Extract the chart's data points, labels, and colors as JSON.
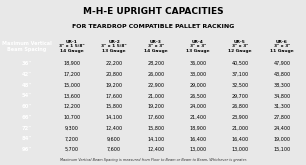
{
  "title": "M-H-E UPRIGHT CAPACITIES",
  "subtitle": "FOR TEARDROP COMPATIBLE PALLET RACKING",
  "footnote": "Maximum Vertical Beam Spacing is measured from Floor to Beam or Beam to Beam, Whichever is greater.",
  "columns": [
    "UR-1",
    "UR-2",
    "UR-3",
    "UR-4",
    "UR-5",
    "UR-6"
  ],
  "col_sub1": [
    "3\" x 1 5/8\"",
    "3\" x 1 5/8\"",
    "3\" x 3\"",
    "3\" x 3\"",
    "3\" x 3\"",
    "3\" x 3\""
  ],
  "col_sub2": [
    "14 Gauge",
    "13 Gauge",
    "14 Gauge",
    "13 Gauge",
    "12 Gauge",
    "11 Gauge"
  ],
  "row_header": "Maximum Vertical\nBeam Spacing",
  "rows": [
    "36\"",
    "42\"",
    "48\"",
    "54\"",
    "60\"",
    "66\"",
    "72\"",
    "84\"",
    "96\""
  ],
  "data": [
    [
      18900,
      22200,
      28200,
      36000,
      40500,
      47900
    ],
    [
      17200,
      20800,
      26000,
      33000,
      37100,
      43800
    ],
    [
      15000,
      19200,
      22900,
      29000,
      32500,
      38300
    ],
    [
      13600,
      17600,
      21000,
      26500,
      29700,
      34800
    ],
    [
      12200,
      15800,
      19200,
      24000,
      26800,
      31300
    ],
    [
      10700,
      14100,
      17600,
      21400,
      23900,
      27800
    ],
    [
      9300,
      12400,
      15800,
      18900,
      21000,
      24400
    ],
    [
      7200,
      9600,
      14100,
      16400,
      16400,
      19000
    ],
    [
      5700,
      7600,
      12400,
      13000,
      13000,
      15100
    ]
  ],
  "color_bg": "#E8E8E8",
  "color_header_bg": "#8B1A1A",
  "color_header_text": "#FFFFFF",
  "color_col_header_bg": "#FFFFFF",
  "color_col_header_text": "#000000",
  "color_row_label_bg": "#8B1A1A",
  "color_row_label_text": "#FFFFFF",
  "color_row_odd": "#C8C8C8",
  "color_row_even": "#E8C8C8",
  "color_data_text": "#000000",
  "color_border": "#999999",
  "color_title": "#000000",
  "color_subtitle": "#000000",
  "color_footnote": "#333333",
  "title_fontsize": 6.5,
  "subtitle_fontsize": 4.5,
  "header_fontsize": 3.5,
  "data_fontsize": 3.5,
  "row_label_fontsize": 3.8,
  "footnote_fontsize": 2.5
}
